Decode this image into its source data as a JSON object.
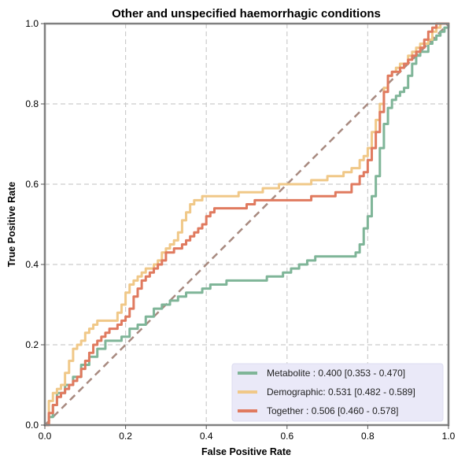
{
  "chart_data": {
    "type": "line",
    "title": "Other and unspecified haemorrhagic conditions",
    "xlabel": "False Positive Rate",
    "ylabel": "True Positive Rate",
    "xlim": [
      0,
      1
    ],
    "ylim": [
      0,
      1
    ],
    "xticks": [
      "0.0",
      "0.2",
      "0.4",
      "0.6",
      "0.8",
      "1.0"
    ],
    "yticks": [
      "0.0",
      "0.2",
      "0.4",
      "0.6",
      "0.8",
      "1.0"
    ],
    "grid": true,
    "legend_position": "lower-right",
    "chance_line": {
      "x": [
        0,
        1
      ],
      "y": [
        0,
        1
      ],
      "color": "#A88A80"
    },
    "series": [
      {
        "name": "Metabolite",
        "legend_label": "Metabolite     : 0.400 [0.353 - 0.470]",
        "color": "#7FB598",
        "x": [
          0,
          0.01,
          0.02,
          0.03,
          0.05,
          0.07,
          0.09,
          0.11,
          0.13,
          0.15,
          0.17,
          0.19,
          0.21,
          0.23,
          0.25,
          0.27,
          0.29,
          0.31,
          0.33,
          0.35,
          0.37,
          0.39,
          0.41,
          0.43,
          0.45,
          0.47,
          0.49,
          0.51,
          0.53,
          0.55,
          0.57,
          0.59,
          0.61,
          0.63,
          0.65,
          0.67,
          0.69,
          0.71,
          0.73,
          0.75,
          0.77,
          0.78,
          0.79,
          0.8,
          0.81,
          0.82,
          0.83,
          0.84,
          0.85,
          0.86,
          0.87,
          0.88,
          0.89,
          0.9,
          0.91,
          0.92,
          0.93,
          0.94,
          0.95,
          0.96,
          0.97,
          0.98,
          0.99,
          1.0
        ],
        "y": [
          0,
          0.02,
          0.05,
          0.08,
          0.1,
          0.12,
          0.15,
          0.17,
          0.19,
          0.21,
          0.21,
          0.22,
          0.24,
          0.25,
          0.27,
          0.29,
          0.3,
          0.31,
          0.32,
          0.33,
          0.33,
          0.34,
          0.35,
          0.35,
          0.36,
          0.36,
          0.36,
          0.36,
          0.36,
          0.37,
          0.37,
          0.38,
          0.39,
          0.4,
          0.41,
          0.42,
          0.42,
          0.42,
          0.42,
          0.42,
          0.43,
          0.45,
          0.49,
          0.52,
          0.57,
          0.62,
          0.69,
          0.75,
          0.79,
          0.81,
          0.82,
          0.83,
          0.84,
          0.87,
          0.9,
          0.92,
          0.93,
          0.93,
          0.95,
          0.96,
          0.97,
          0.98,
          0.99,
          1.0
        ]
      },
      {
        "name": "Demographic",
        "legend_label": "Demographic: 0.531 [0.482 - 0.589]",
        "color": "#F0C888",
        "x": [
          0,
          0.01,
          0.02,
          0.03,
          0.04,
          0.05,
          0.06,
          0.07,
          0.08,
          0.09,
          0.1,
          0.11,
          0.12,
          0.13,
          0.14,
          0.15,
          0.16,
          0.17,
          0.18,
          0.19,
          0.2,
          0.21,
          0.22,
          0.23,
          0.24,
          0.25,
          0.26,
          0.27,
          0.28,
          0.29,
          0.3,
          0.31,
          0.32,
          0.33,
          0.34,
          0.35,
          0.36,
          0.37,
          0.38,
          0.39,
          0.4,
          0.41,
          0.42,
          0.43,
          0.44,
          0.45,
          0.46,
          0.47,
          0.48,
          0.5,
          0.52,
          0.54,
          0.56,
          0.58,
          0.6,
          0.62,
          0.64,
          0.66,
          0.68,
          0.7,
          0.72,
          0.74,
          0.76,
          0.78,
          0.79,
          0.8,
          0.81,
          0.82,
          0.83,
          0.84,
          0.85,
          0.86,
          0.87,
          0.88,
          0.89,
          0.9,
          0.91,
          0.92,
          0.93,
          0.94,
          0.95,
          0.96,
          0.97,
          0.98,
          0.99,
          1.0
        ],
        "y": [
          0,
          0.06,
          0.08,
          0.09,
          0.1,
          0.13,
          0.16,
          0.19,
          0.2,
          0.21,
          0.23,
          0.24,
          0.25,
          0.26,
          0.26,
          0.26,
          0.26,
          0.26,
          0.28,
          0.3,
          0.33,
          0.35,
          0.36,
          0.37,
          0.38,
          0.39,
          0.39,
          0.4,
          0.41,
          0.43,
          0.44,
          0.45,
          0.46,
          0.48,
          0.51,
          0.53,
          0.55,
          0.56,
          0.56,
          0.57,
          0.57,
          0.57,
          0.57,
          0.57,
          0.57,
          0.57,
          0.57,
          0.57,
          0.58,
          0.58,
          0.58,
          0.59,
          0.59,
          0.6,
          0.6,
          0.6,
          0.6,
          0.61,
          0.61,
          0.62,
          0.62,
          0.63,
          0.64,
          0.66,
          0.67,
          0.69,
          0.73,
          0.76,
          0.8,
          0.84,
          0.87,
          0.88,
          0.89,
          0.9,
          0.9,
          0.92,
          0.93,
          0.94,
          0.95,
          0.95,
          0.96,
          0.98,
          0.99,
          1.0,
          1.0,
          1.0
        ]
      },
      {
        "name": "Together",
        "legend_label": "Together       : 0.506 [0.460 - 0.578]",
        "color": "#E07A5F",
        "x": [
          0,
          0.01,
          0.02,
          0.03,
          0.04,
          0.05,
          0.06,
          0.07,
          0.08,
          0.09,
          0.1,
          0.11,
          0.12,
          0.13,
          0.14,
          0.15,
          0.16,
          0.17,
          0.18,
          0.19,
          0.2,
          0.21,
          0.22,
          0.23,
          0.24,
          0.25,
          0.26,
          0.27,
          0.28,
          0.29,
          0.3,
          0.31,
          0.32,
          0.33,
          0.34,
          0.35,
          0.36,
          0.37,
          0.38,
          0.39,
          0.4,
          0.41,
          0.42,
          0.43,
          0.44,
          0.45,
          0.46,
          0.47,
          0.48,
          0.5,
          0.52,
          0.54,
          0.56,
          0.58,
          0.6,
          0.62,
          0.64,
          0.66,
          0.68,
          0.7,
          0.72,
          0.74,
          0.76,
          0.78,
          0.79,
          0.8,
          0.81,
          0.82,
          0.83,
          0.84,
          0.85,
          0.86,
          0.87,
          0.88,
          0.89,
          0.9,
          0.91,
          0.92,
          0.93,
          0.94,
          0.95,
          0.96,
          0.97,
          0.98,
          0.99,
          1.0
        ],
        "y": [
          0,
          0.03,
          0.05,
          0.07,
          0.08,
          0.09,
          0.1,
          0.11,
          0.12,
          0.14,
          0.16,
          0.18,
          0.2,
          0.21,
          0.22,
          0.23,
          0.24,
          0.24,
          0.25,
          0.26,
          0.27,
          0.29,
          0.32,
          0.34,
          0.36,
          0.37,
          0.38,
          0.39,
          0.4,
          0.41,
          0.43,
          0.43,
          0.44,
          0.44,
          0.45,
          0.46,
          0.47,
          0.48,
          0.49,
          0.5,
          0.52,
          0.53,
          0.54,
          0.54,
          0.54,
          0.54,
          0.54,
          0.54,
          0.54,
          0.55,
          0.56,
          0.56,
          0.56,
          0.56,
          0.56,
          0.56,
          0.56,
          0.57,
          0.57,
          0.57,
          0.58,
          0.58,
          0.6,
          0.62,
          0.63,
          0.66,
          0.69,
          0.73,
          0.78,
          0.83,
          0.87,
          0.88,
          0.88,
          0.89,
          0.9,
          0.91,
          0.92,
          0.93,
          0.94,
          0.96,
          0.98,
          0.99,
          1.0,
          1.0,
          1.0,
          1.0
        ]
      }
    ]
  }
}
